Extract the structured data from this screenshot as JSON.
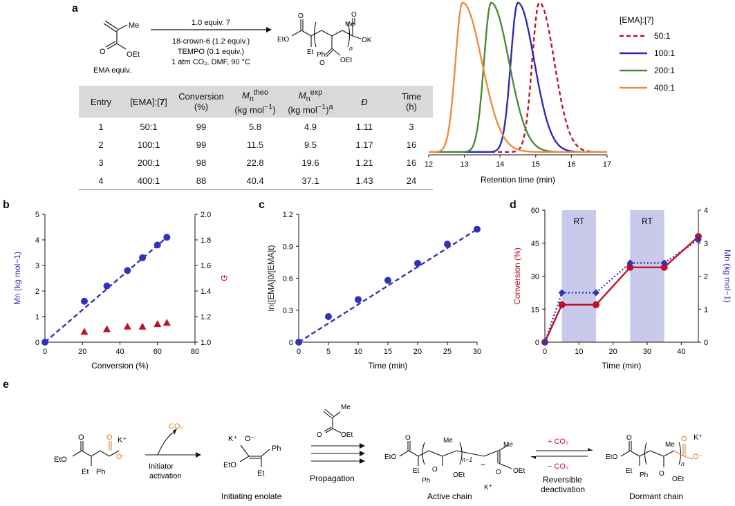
{
  "panel_labels": {
    "a": "a",
    "b": "b",
    "c": "c",
    "d": "d",
    "e": "e"
  },
  "scheme_a": {
    "reactant_label": "EMA equiv.",
    "me": "Me",
    "oet": "OEt",
    "o": "O",
    "condition_top": "1.0 equiv. 7",
    "conditions": [
      "18-crown-6 (1.2 equiv.)",
      "TEMPO (0.1 equiv.)",
      "1 atm CO₂, DMF, 90 °C"
    ],
    "product_labels": {
      "eto": "EtO",
      "ok": "OK",
      "et": "Et",
      "ph": "Ph",
      "n": "n",
      "oet": "OEt",
      "me": "Me"
    }
  },
  "table": {
    "headers": [
      "Entry",
      "[EMA]:[7]",
      "Conversion (%)",
      "Mn theo (kg mol−1)",
      "Mn exp (kg mol−1)a",
      "Đ",
      "Time (h)"
    ],
    "rows": [
      [
        "1",
        "50:1",
        "99",
        "5.8",
        "4.9",
        "1.11",
        "3"
      ],
      [
        "2",
        "100:1",
        "99",
        "11.5",
        "9.5",
        "1.17",
        "16"
      ],
      [
        "3",
        "200:1",
        "98",
        "22.8",
        "19.6",
        "1.21",
        "16"
      ],
      [
        "4",
        "400:1",
        "88",
        "40.4",
        "37.1",
        "1.43",
        "24"
      ]
    ]
  },
  "chart_data": [
    {
      "type": "line",
      "title": "",
      "xlabel": "Retention time (min)",
      "xlim": [
        12,
        17
      ],
      "xticks": [
        12,
        13,
        14,
        15,
        16,
        17
      ],
      "legend_title": "[EMA]:[7]",
      "legend_position": "right",
      "series": [
        {
          "name": "50:1",
          "peak": 15.1,
          "color": "#c0102a",
          "style": "dashed"
        },
        {
          "name": "100:1",
          "peak": 14.5,
          "color": "#2b2bb5",
          "style": "solid"
        },
        {
          "name": "200:1",
          "peak": 13.75,
          "color": "#4a8a35",
          "style": "solid"
        },
        {
          "name": "400:1",
          "peak": 12.95,
          "color": "#f08a3c",
          "style": "solid"
        }
      ]
    },
    {
      "type": "scatter",
      "xlabel": "Conversion (%)",
      "ylabel": "Mn (kg mol−1)",
      "ylabel_right": "Đ",
      "xlim": [
        0,
        80
      ],
      "ylim": [
        0,
        5
      ],
      "ylim_right": [
        1.0,
        2.0
      ],
      "xticks": [
        0,
        20,
        40,
        60,
        80
      ],
      "yticks": [
        0,
        1,
        2,
        3,
        4,
        5
      ],
      "yticks_right": [
        "1.0",
        "1.2",
        "1.4",
        "1.6",
        "1.8",
        "2.0"
      ],
      "series": [
        {
          "name": "Mn",
          "x": [
            0,
            21,
            33,
            44,
            52,
            60,
            65
          ],
          "y": [
            0,
            1.6,
            2.2,
            2.8,
            3.3,
            3.8,
            4.1
          ],
          "color": "#3232b8"
        },
        {
          "name": "Đ",
          "x": [
            21,
            33,
            44,
            52,
            60,
            65
          ],
          "y": [
            1.08,
            1.1,
            1.12,
            1.12,
            1.14,
            1.15
          ],
          "color": "#c0102a"
        }
      ]
    },
    {
      "type": "scatter",
      "xlabel": "Time (min)",
      "ylabel": "ln([EMA]0/[EMA]t)",
      "xlim": [
        0,
        30
      ],
      "ylim": [
        0,
        1.2
      ],
      "xticks": [
        0,
        5,
        10,
        15,
        20,
        25,
        30
      ],
      "yticks": [
        "0",
        "0.3",
        "0.6",
        "0.9",
        "1.2"
      ],
      "series": [
        {
          "name": "ln",
          "x": [
            0,
            5,
            10,
            15,
            20,
            25,
            30
          ],
          "y": [
            0,
            0.24,
            0.4,
            0.58,
            0.74,
            0.92,
            1.06
          ],
          "color": "#3232b8"
        }
      ]
    },
    {
      "type": "line",
      "xlabel": "Time (min)",
      "ylabel": "Conversion (%)",
      "ylabel_right": "Mn (kg mol−1)",
      "xlim": [
        0,
        45
      ],
      "ylim": [
        0,
        60
      ],
      "ylim_right": [
        0,
        4
      ],
      "xticks": [
        0,
        10,
        20,
        30,
        40
      ],
      "yticks": [
        0,
        15,
        30,
        45,
        60
      ],
      "yticks_right": [
        0,
        1,
        2,
        3,
        4
      ],
      "shaded_regions": [
        {
          "label": "RT",
          "from": 5,
          "to": 15
        },
        {
          "label": "RT",
          "from": 25,
          "to": 35
        }
      ],
      "series": [
        {
          "name": "Conversion",
          "x": [
            0,
            5,
            15,
            25,
            35,
            45
          ],
          "y": [
            0,
            17,
            17,
            34,
            34,
            48
          ],
          "color": "#c0102a"
        },
        {
          "name": "Mn",
          "x": [
            0,
            5,
            15,
            25,
            35,
            45
          ],
          "y": [
            0,
            1.5,
            1.5,
            2.4,
            2.4,
            3.1
          ],
          "color": "#3232b8"
        }
      ]
    }
  ],
  "scheme_e": {
    "co2": "CO₂",
    "k": "K",
    "init_text": [
      "Initiator",
      "activation"
    ],
    "propagation": "Propagation",
    "plus_co2": "+ CO₂",
    "minus_co2": "− CO₂",
    "reversible": [
      "Reversible",
      "deactivation"
    ],
    "captions": [
      "Initiating enolate",
      "Active chain",
      "Dormant chain"
    ],
    "labels": {
      "eto": "EtO",
      "et": "Et",
      "ph": "Ph",
      "o": "O",
      "me": "Me",
      "oet": "OEt",
      "n1": "n−1",
      "n": "n"
    }
  }
}
